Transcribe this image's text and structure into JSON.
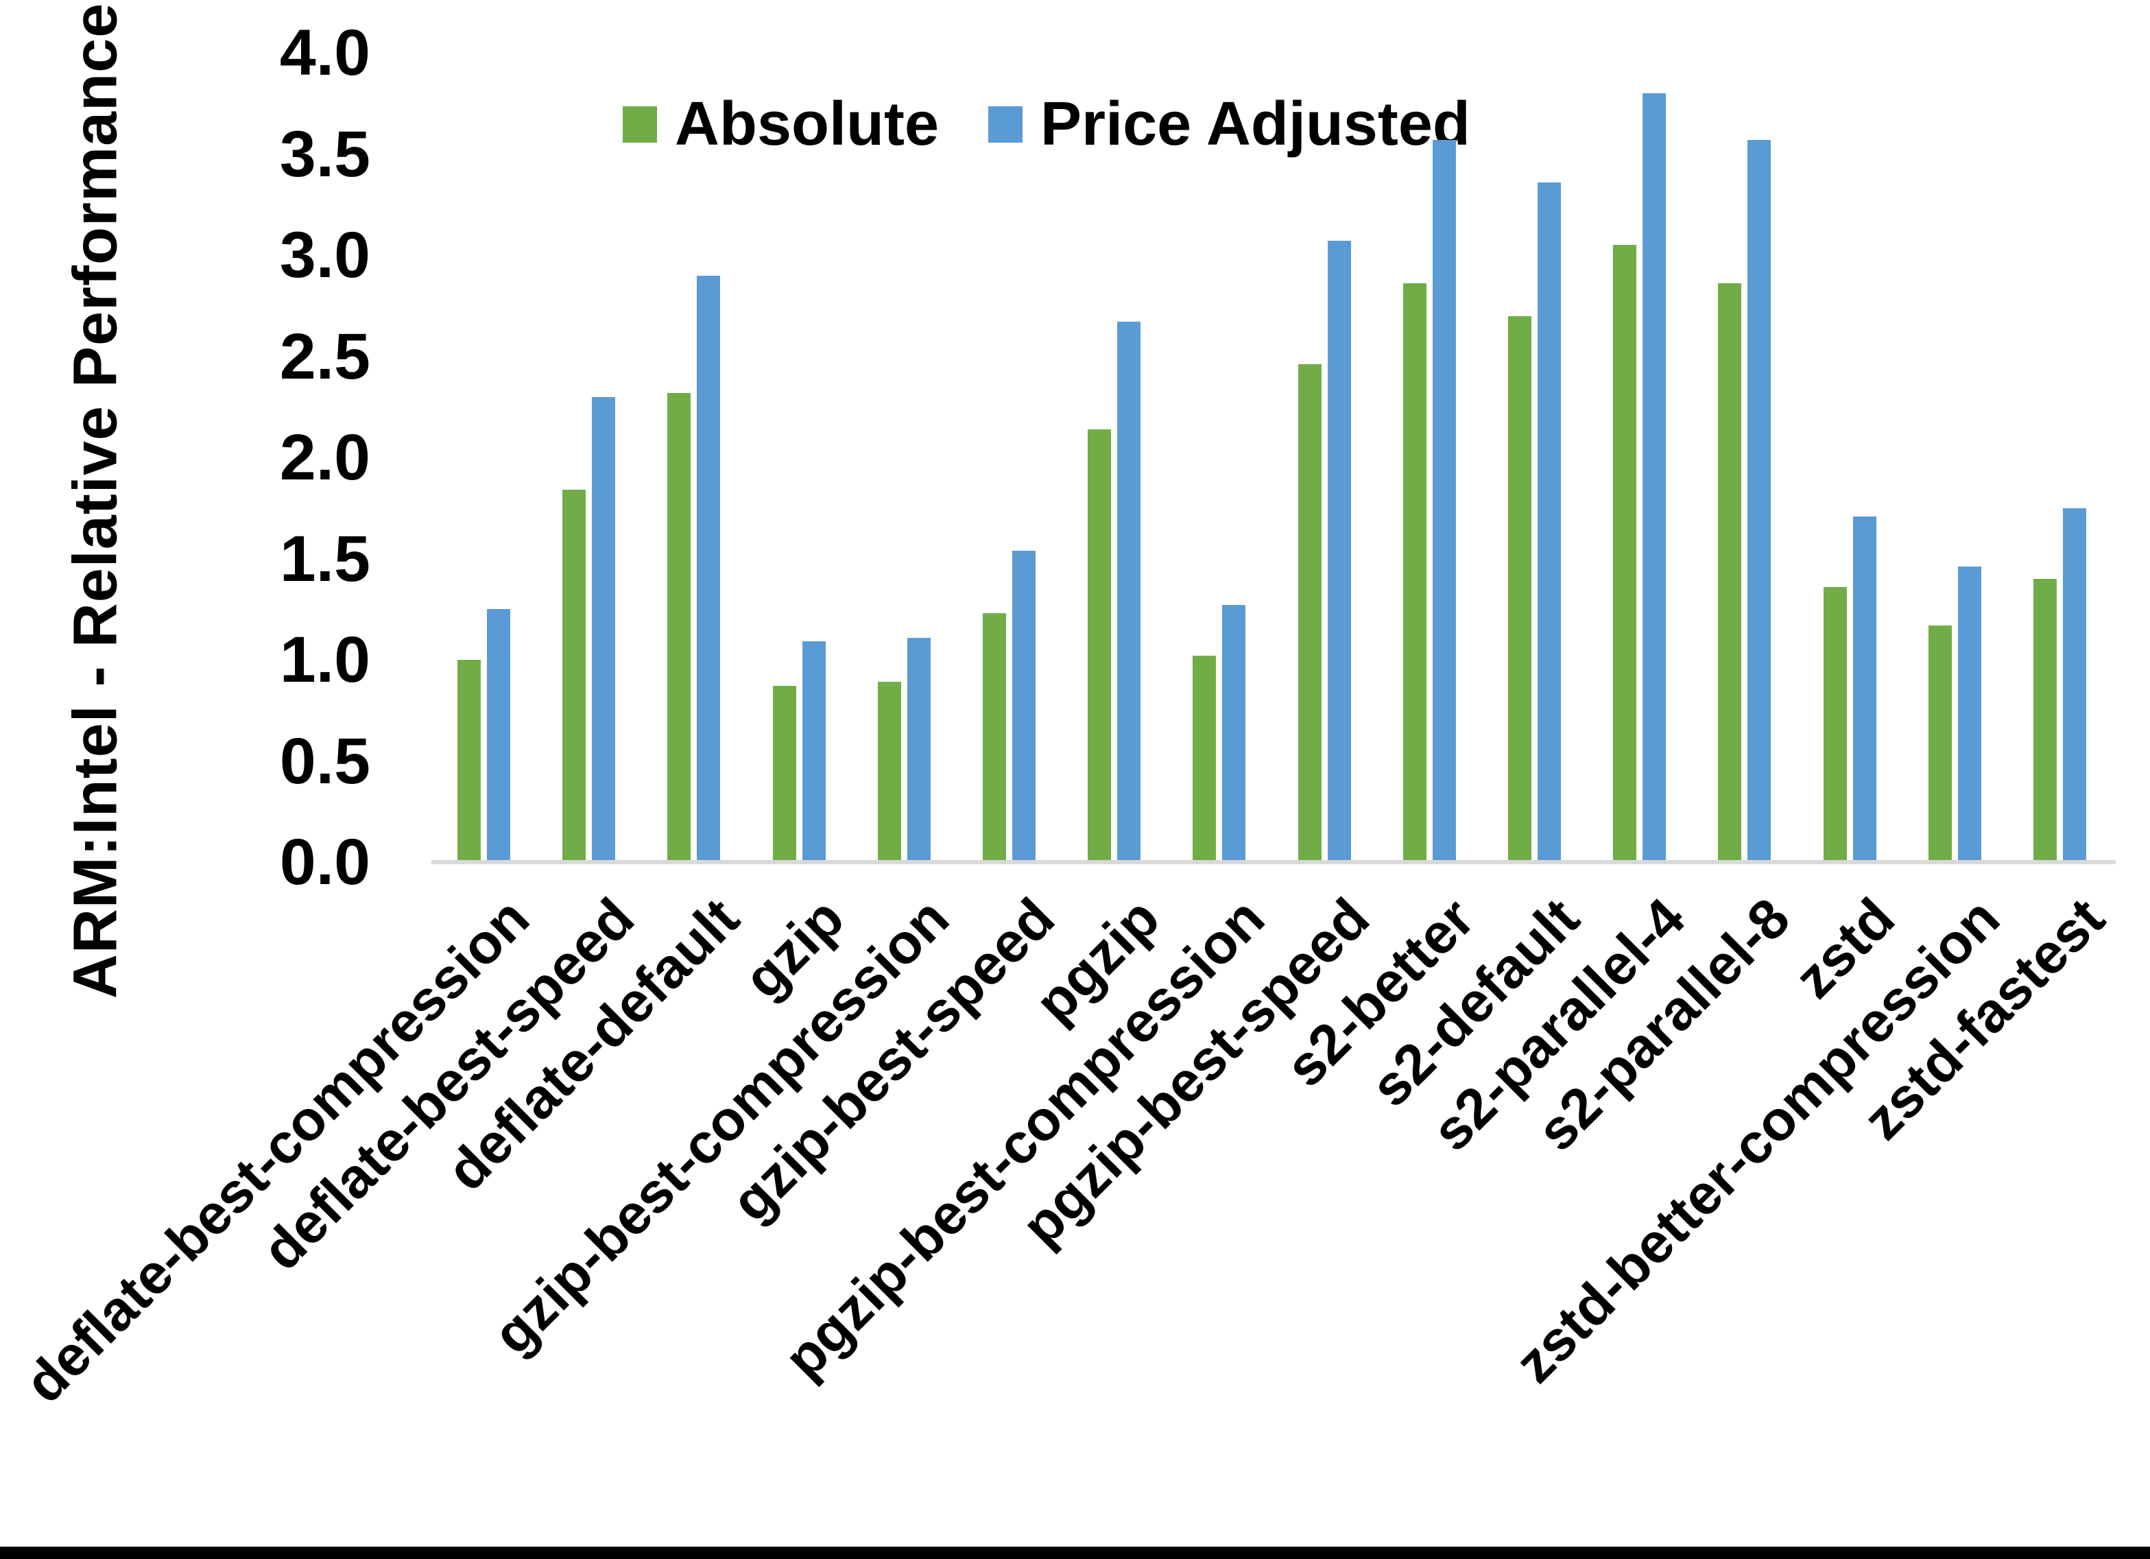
{
  "figure": {
    "background_color": "#ffffff",
    "bottom_bar_color": "#000000",
    "axis_line_color": "#d9d9d9",
    "text_color": "#000000"
  },
  "chart_data": {
    "type": "bar",
    "title": "",
    "xlabel": "",
    "ylabel": "ARM:Intel - Relative Performance",
    "ylim": [
      0.0,
      4.0
    ],
    "ytick_step": 0.5,
    "yticks": [
      "4.0",
      "3.5",
      "3.0",
      "2.5",
      "2.0",
      "1.5",
      "1.0",
      "0.5",
      "0.0"
    ],
    "grid": false,
    "legend_position": "top-center-inside",
    "x_label_rotation_deg": 45,
    "categories": [
      "deflate-best-compression",
      "deflate-best-speed",
      "deflate-default",
      "gzip",
      "gzip-best-compression",
      "gzip-best-speed",
      "pgzip",
      "pgzip-best-compression",
      "pgzip-best-speed",
      "s2-better",
      "s2-default",
      "s2-parallel-4",
      "s2-parallel-8",
      "zstd",
      "zstd-better-compression",
      "zstd-fastest"
    ],
    "series": [
      {
        "name": "Absolute",
        "color": "#70AD47",
        "values": [
          1.0,
          1.84,
          2.32,
          0.87,
          0.89,
          1.23,
          2.14,
          1.02,
          2.46,
          2.86,
          2.7,
          3.05,
          2.86,
          1.36,
          1.17,
          1.4
        ]
      },
      {
        "name": "Price Adjusted",
        "color": "#5B9BD5",
        "values": [
          1.25,
          2.3,
          2.9,
          1.09,
          1.11,
          1.54,
          2.67,
          1.27,
          3.07,
          3.57,
          3.36,
          3.8,
          3.57,
          1.71,
          1.46,
          1.75
        ]
      }
    ]
  }
}
